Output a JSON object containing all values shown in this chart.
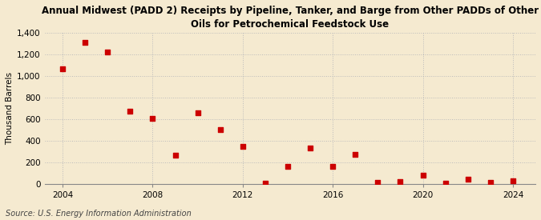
{
  "title": "Annual Midwest (PADD 2) Receipts by Pipeline, Tanker, and Barge from Other PADDs of Other\nOils for Petrochemical Feedstock Use",
  "ylabel": "Thousand Barrels",
  "source": "Source: U.S. Energy Information Administration",
  "background_color": "#f5ead0",
  "marker_color": "#cc0000",
  "years": [
    2004,
    2005,
    2006,
    2007,
    2008,
    2009,
    2010,
    2011,
    2012,
    2013,
    2014,
    2015,
    2016,
    2017,
    2018,
    2019,
    2020,
    2021,
    2022,
    2023,
    2024
  ],
  "values": [
    1065,
    1310,
    1220,
    675,
    605,
    265,
    655,
    500,
    350,
    5,
    160,
    330,
    160,
    270,
    10,
    20,
    80,
    5,
    40,
    10,
    25
  ],
  "ylim": [
    0,
    1400
  ],
  "yticks": [
    0,
    200,
    400,
    600,
    800,
    1000,
    1200,
    1400
  ],
  "xticks": [
    2004,
    2008,
    2012,
    2016,
    2020,
    2024
  ],
  "xlim": [
    2003.2,
    2025
  ],
  "grid_color": "#bbbbbb",
  "title_fontsize": 8.5,
  "label_fontsize": 7.5,
  "tick_fontsize": 7.5,
  "source_fontsize": 7.0
}
